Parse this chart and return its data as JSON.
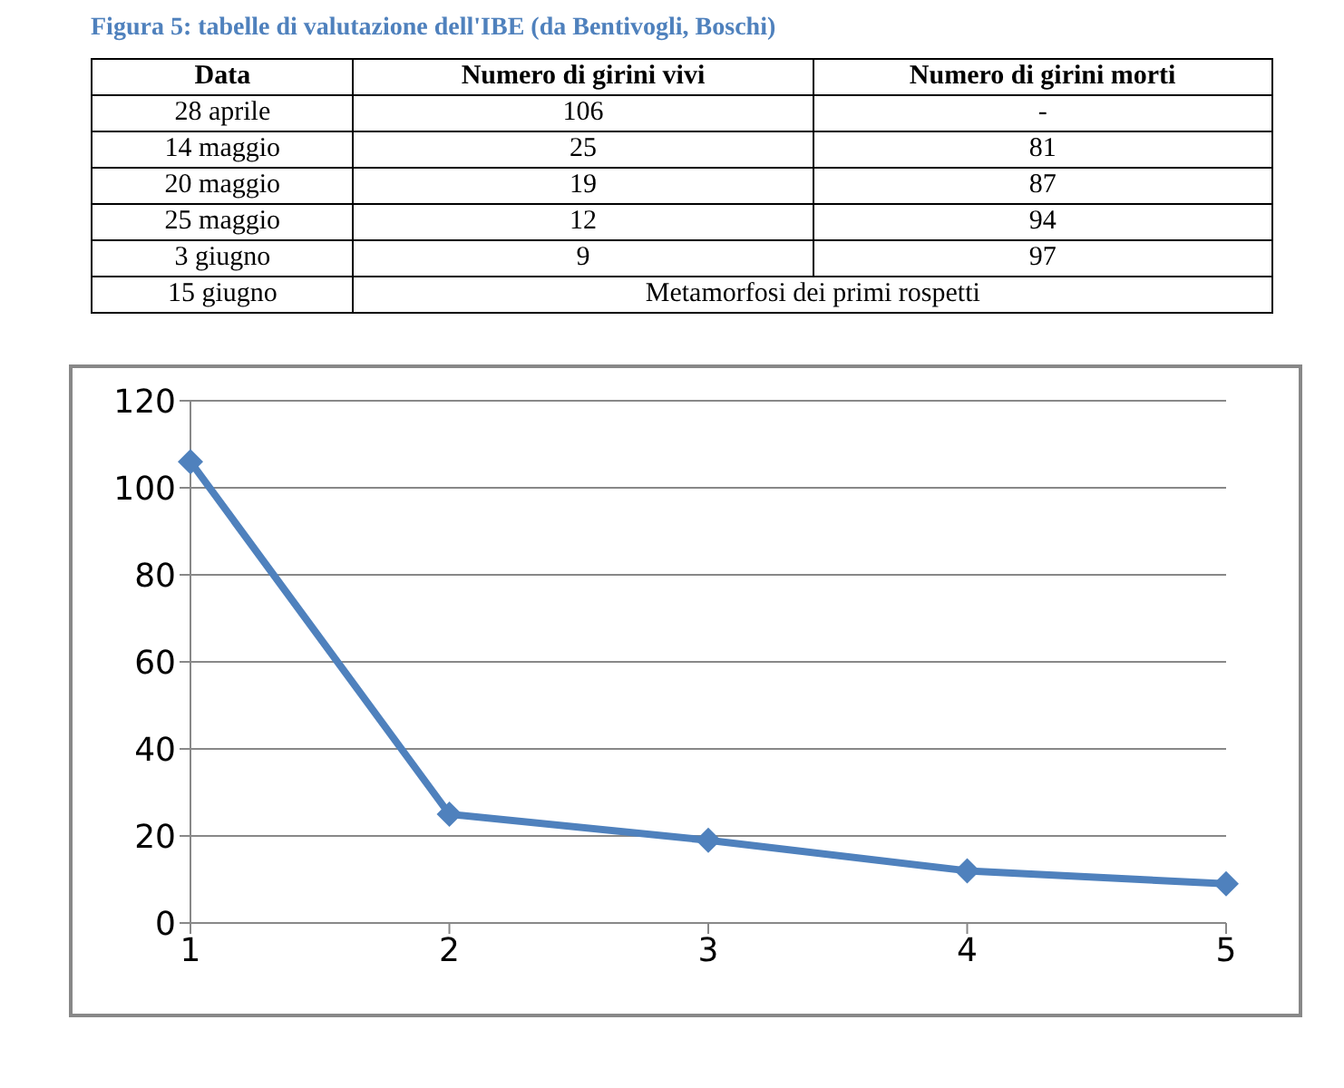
{
  "chart_data": [
    {
      "type": "other",
      "title": "Figura 5: tabelle di valutazione dell'IBE (da Bentivogli, Boschi)",
      "categories": [
        "Data",
        "Numero di girini vivi",
        "Numero di girini morti"
      ],
      "y_categories": [
        "28 aprile",
        "14 maggio",
        "20 maggio",
        "25 maggio",
        "3 giugno",
        "15 giugno"
      ],
      "cell_labels": [
        [
          "106",
          "-"
        ],
        [
          "25",
          "81"
        ],
        [
          "19",
          "87"
        ],
        [
          "12",
          "94"
        ],
        [
          "9",
          "97"
        ],
        [
          "Metamorfosi dei primi rospetti"
        ]
      ]
    },
    {
      "type": "line",
      "categories": [
        "1",
        "2",
        "3",
        "4",
        "5"
      ],
      "values": [
        106,
        25,
        19,
        12,
        9
      ],
      "color": "#4f81bd",
      "ylim": [
        0,
        120
      ],
      "yticks": [
        0,
        20,
        40,
        60,
        80,
        100,
        120
      ],
      "grid": "y",
      "marker": "diamond",
      "line_style": "solid"
    }
  ]
}
